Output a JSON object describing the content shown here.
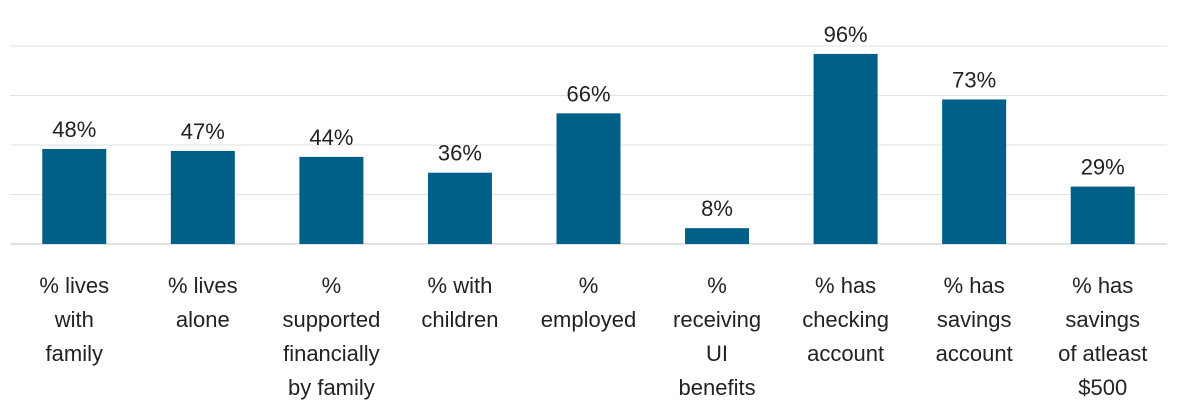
{
  "chart_data": {
    "type": "bar",
    "title": "",
    "xlabel": "",
    "ylabel": "",
    "ylim": [
      0,
      100
    ],
    "grid": true,
    "bar_color": "#005f87",
    "categories": [
      [
        "% lives",
        "with",
        "family"
      ],
      [
        "% lives",
        "alone"
      ],
      [
        "%",
        "supported",
        "financially",
        "by family"
      ],
      [
        "% with",
        "children"
      ],
      [
        "%",
        "employed"
      ],
      [
        "%",
        "receiving",
        "UI",
        "benefits"
      ],
      [
        "% has",
        "checking",
        "account"
      ],
      [
        "% has",
        "savings",
        "account"
      ],
      [
        "% has",
        "savings",
        "of atleast",
        "$500"
      ]
    ],
    "values": [
      48,
      47,
      44,
      36,
      66,
      8,
      96,
      73,
      29
    ],
    "data_labels": [
      "48%",
      "47%",
      "44%",
      "36%",
      "66%",
      "8%",
      "96%",
      "73%",
      "29%"
    ]
  }
}
